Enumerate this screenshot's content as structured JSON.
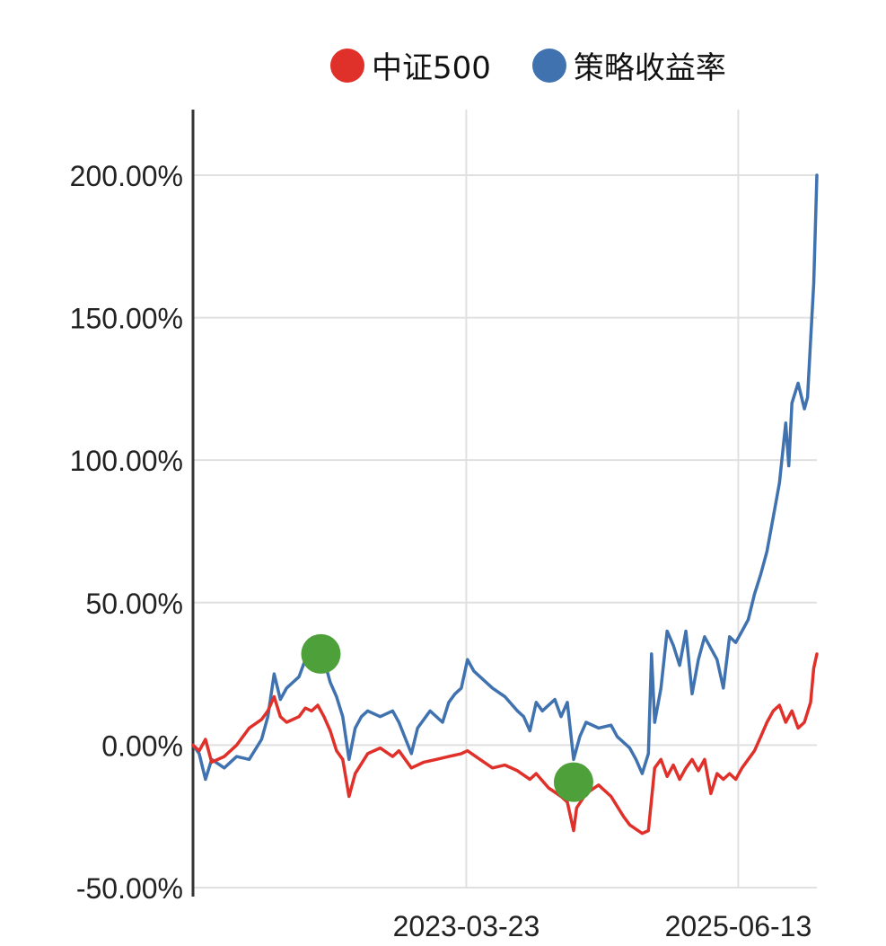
{
  "legend": [
    {
      "label": "中证500",
      "color": "#e0302a"
    },
    {
      "label": "策略收益率",
      "color": "#3f72af"
    }
  ],
  "chart_data": {
    "type": "line",
    "x_ticks": [
      {
        "label": "2023-03-23",
        "t": 0.438
      },
      {
        "label": "2025-06-13",
        "t": 0.874
      }
    ],
    "y_ticks": [
      "-50.00%",
      "0.00%",
      "50.00%",
      "100.00%",
      "150.00%",
      "200.00%"
    ],
    "y_tick_values": [
      -50,
      0,
      50,
      100,
      150,
      200
    ],
    "ylim": [
      -50,
      223
    ],
    "grid": true,
    "legend_position": "top",
    "series": [
      {
        "name": "策略收益率",
        "color": "#3f72af",
        "points": [
          [
            0.0,
            0
          ],
          [
            0.01,
            -3
          ],
          [
            0.02,
            -12
          ],
          [
            0.03,
            -5
          ],
          [
            0.05,
            -8
          ],
          [
            0.07,
            -4
          ],
          [
            0.09,
            -5
          ],
          [
            0.11,
            2
          ],
          [
            0.12,
            10
          ],
          [
            0.13,
            25
          ],
          [
            0.14,
            16
          ],
          [
            0.15,
            20
          ],
          [
            0.17,
            24
          ],
          [
            0.18,
            30
          ],
          [
            0.19,
            29
          ],
          [
            0.2,
            32
          ],
          [
            0.21,
            30
          ],
          [
            0.22,
            22
          ],
          [
            0.23,
            17
          ],
          [
            0.24,
            10
          ],
          [
            0.25,
            -5
          ],
          [
            0.26,
            6
          ],
          [
            0.27,
            10
          ],
          [
            0.28,
            12
          ],
          [
            0.3,
            10
          ],
          [
            0.32,
            12
          ],
          [
            0.33,
            8
          ],
          [
            0.35,
            -3
          ],
          [
            0.36,
            6
          ],
          [
            0.38,
            12
          ],
          [
            0.4,
            8
          ],
          [
            0.41,
            15
          ],
          [
            0.42,
            18
          ],
          [
            0.43,
            20
          ],
          [
            0.44,
            30
          ],
          [
            0.45,
            26
          ],
          [
            0.47,
            22
          ],
          [
            0.48,
            20
          ],
          [
            0.5,
            17
          ],
          [
            0.52,
            12
          ],
          [
            0.53,
            10
          ],
          [
            0.54,
            5
          ],
          [
            0.55,
            15
          ],
          [
            0.56,
            12
          ],
          [
            0.58,
            16
          ],
          [
            0.59,
            10
          ],
          [
            0.6,
            15
          ],
          [
            0.61,
            -5
          ],
          [
            0.62,
            3
          ],
          [
            0.63,
            8
          ],
          [
            0.65,
            6
          ],
          [
            0.67,
            7
          ],
          [
            0.68,
            3
          ],
          [
            0.7,
            -1
          ],
          [
            0.71,
            -5
          ],
          [
            0.72,
            -10
          ],
          [
            0.73,
            -3
          ],
          [
            0.735,
            32
          ],
          [
            0.74,
            8
          ],
          [
            0.75,
            20
          ],
          [
            0.76,
            40
          ],
          [
            0.77,
            35
          ],
          [
            0.78,
            28
          ],
          [
            0.79,
            40
          ],
          [
            0.8,
            18
          ],
          [
            0.81,
            30
          ],
          [
            0.82,
            38
          ],
          [
            0.84,
            30
          ],
          [
            0.85,
            20
          ],
          [
            0.86,
            38
          ],
          [
            0.87,
            36
          ],
          [
            0.88,
            40
          ],
          [
            0.89,
            44
          ],
          [
            0.9,
            53
          ],
          [
            0.91,
            60
          ],
          [
            0.92,
            68
          ],
          [
            0.93,
            80
          ],
          [
            0.94,
            92
          ],
          [
            0.95,
            113
          ],
          [
            0.955,
            98
          ],
          [
            0.96,
            120
          ],
          [
            0.97,
            127
          ],
          [
            0.98,
            118
          ],
          [
            0.985,
            122
          ],
          [
            0.99,
            142
          ],
          [
            0.995,
            162
          ],
          [
            1.0,
            200
          ]
        ]
      },
      {
        "name": "中证500",
        "color": "#e0302a",
        "points": [
          [
            0.0,
            0
          ],
          [
            0.01,
            -2
          ],
          [
            0.02,
            2
          ],
          [
            0.03,
            -6
          ],
          [
            0.05,
            -4
          ],
          [
            0.07,
            0
          ],
          [
            0.09,
            6
          ],
          [
            0.11,
            9
          ],
          [
            0.12,
            12
          ],
          [
            0.13,
            17
          ],
          [
            0.14,
            10
          ],
          [
            0.15,
            8
          ],
          [
            0.17,
            10
          ],
          [
            0.18,
            13
          ],
          [
            0.19,
            12
          ],
          [
            0.2,
            14
          ],
          [
            0.21,
            10
          ],
          [
            0.22,
            5
          ],
          [
            0.23,
            -2
          ],
          [
            0.24,
            -5
          ],
          [
            0.25,
            -18
          ],
          [
            0.26,
            -10
          ],
          [
            0.28,
            -3
          ],
          [
            0.3,
            -1
          ],
          [
            0.32,
            -4
          ],
          [
            0.33,
            -2
          ],
          [
            0.35,
            -8
          ],
          [
            0.37,
            -6
          ],
          [
            0.39,
            -5
          ],
          [
            0.41,
            -4
          ],
          [
            0.43,
            -3
          ],
          [
            0.44,
            -2
          ],
          [
            0.46,
            -5
          ],
          [
            0.48,
            -8
          ],
          [
            0.5,
            -7
          ],
          [
            0.52,
            -9
          ],
          [
            0.54,
            -12
          ],
          [
            0.55,
            -10
          ],
          [
            0.57,
            -15
          ],
          [
            0.59,
            -18
          ],
          [
            0.6,
            -20
          ],
          [
            0.61,
            -30
          ],
          [
            0.615,
            -22
          ],
          [
            0.63,
            -17
          ],
          [
            0.65,
            -14
          ],
          [
            0.67,
            -18
          ],
          [
            0.69,
            -25
          ],
          [
            0.7,
            -28
          ],
          [
            0.72,
            -31
          ],
          [
            0.73,
            -30
          ],
          [
            0.74,
            -8
          ],
          [
            0.75,
            -5
          ],
          [
            0.76,
            -11
          ],
          [
            0.77,
            -7
          ],
          [
            0.78,
            -12
          ],
          [
            0.79,
            -8
          ],
          [
            0.8,
            -5
          ],
          [
            0.81,
            -9
          ],
          [
            0.82,
            -5
          ],
          [
            0.83,
            -17
          ],
          [
            0.84,
            -10
          ],
          [
            0.85,
            -12
          ],
          [
            0.86,
            -10
          ],
          [
            0.87,
            -12
          ],
          [
            0.88,
            -8
          ],
          [
            0.89,
            -5
          ],
          [
            0.9,
            -2
          ],
          [
            0.91,
            3
          ],
          [
            0.92,
            8
          ],
          [
            0.93,
            12
          ],
          [
            0.94,
            14
          ],
          [
            0.95,
            8
          ],
          [
            0.96,
            12
          ],
          [
            0.97,
            6
          ],
          [
            0.98,
            8
          ],
          [
            0.99,
            15
          ],
          [
            0.995,
            27
          ],
          [
            1.0,
            32
          ]
        ]
      }
    ],
    "markers": [
      {
        "t": 0.205,
        "value": 32,
        "color": "#4ea03a"
      },
      {
        "t": 0.61,
        "value": -13,
        "color": "#4ea03a"
      }
    ]
  }
}
